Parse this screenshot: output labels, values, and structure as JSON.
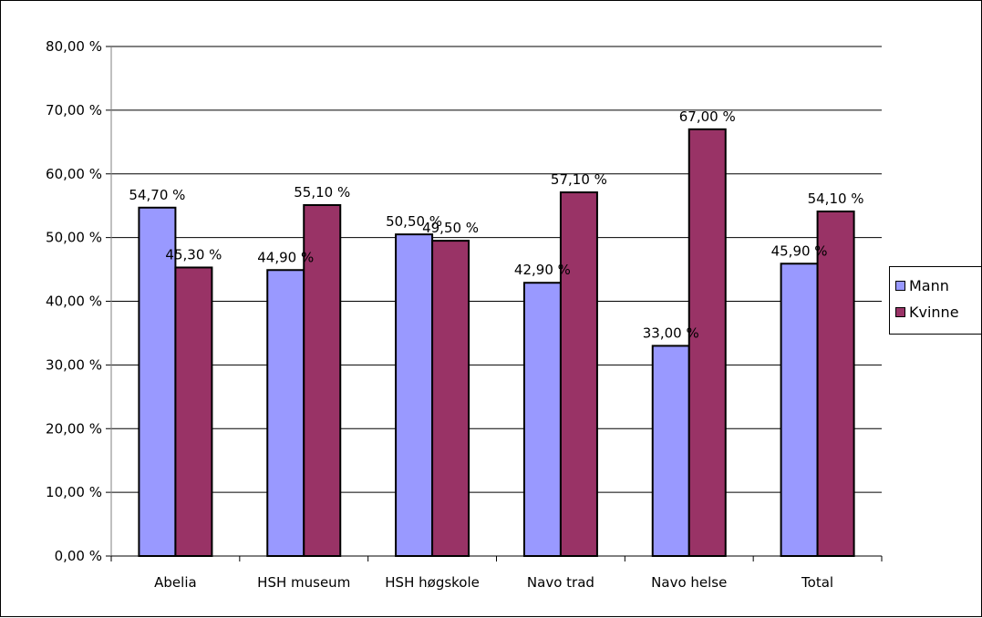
{
  "chart_data": {
    "type": "bar",
    "categories": [
      "Abelia",
      "HSH museum",
      "HSH høgskole",
      "Navo trad",
      "Navo helse",
      "Total"
    ],
    "series": [
      {
        "name": "Mann",
        "color": "#9999ff",
        "values": [
          54.7,
          44.9,
          50.5,
          42.9,
          33.0,
          45.9
        ],
        "labels": [
          "54,70 %",
          "44,90 %",
          "50,50 %",
          "42,90 %",
          "33,00 %",
          "45,90 %"
        ]
      },
      {
        "name": "Kvinne",
        "color": "#993366",
        "values": [
          45.3,
          55.1,
          49.5,
          57.1,
          67.0,
          54.1
        ],
        "labels": [
          "45,30 %",
          "55,10 %",
          "49,50 %",
          "57,10 %",
          "67,00 %",
          "54,10 %"
        ]
      }
    ],
    "y_ticks": [
      0,
      10,
      20,
      30,
      40,
      50,
      60,
      70,
      80
    ],
    "y_tick_labels": [
      "0,00 %",
      "10,00 %",
      "20,00 %",
      "30,00 %",
      "40,00 %",
      "50,00 %",
      "60,00 %",
      "70,00 %",
      "80,00 %"
    ],
    "ylim": [
      0,
      80
    ],
    "grid": true,
    "legend_position": "right"
  }
}
